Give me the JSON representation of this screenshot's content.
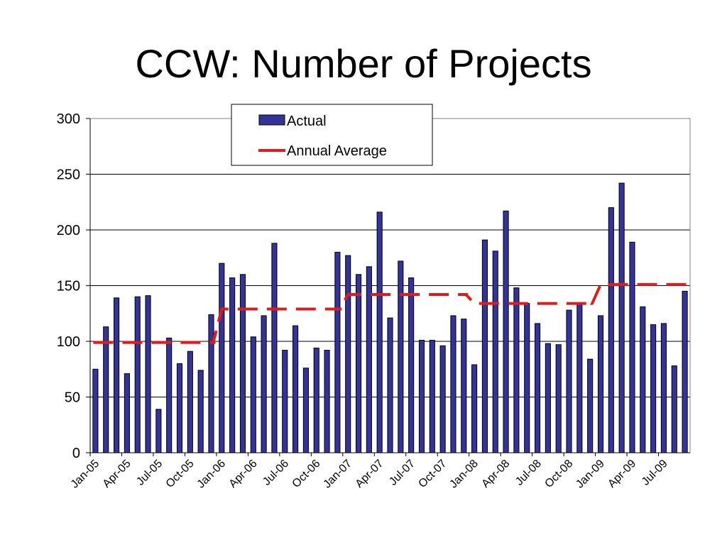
{
  "slide": {
    "title": "CCW: Number of Projects"
  },
  "chart_data": {
    "type": "bar",
    "title": "CCW: Number of Projects",
    "xlabel": "",
    "ylabel": "",
    "ylim": [
      0,
      300
    ],
    "yticks": [
      0,
      50,
      100,
      150,
      200,
      250,
      300
    ],
    "grid": true,
    "legend_position": "top-center",
    "x_tick_labels": [
      "Jan-05",
      "Apr-05",
      "Jul-05",
      "Oct-05",
      "Jan-06",
      "Apr-06",
      "Jul-06",
      "Oct-06",
      "Jan-07",
      "Apr-07",
      "Jul-07",
      "Oct-07",
      "Jan-08",
      "Apr-08",
      "Jul-08",
      "Oct-08",
      "Jan-09",
      "Apr-09",
      "Jul-09"
    ],
    "categories": [
      "Jan-05",
      "Feb-05",
      "Mar-05",
      "Apr-05",
      "May-05",
      "Jun-05",
      "Jul-05",
      "Aug-05",
      "Sep-05",
      "Oct-05",
      "Nov-05",
      "Dec-05",
      "Jan-06",
      "Feb-06",
      "Mar-06",
      "Apr-06",
      "May-06",
      "Jun-06",
      "Jul-06",
      "Aug-06",
      "Sep-06",
      "Oct-06",
      "Nov-06",
      "Dec-06",
      "Jan-07",
      "Feb-07",
      "Mar-07",
      "Apr-07",
      "May-07",
      "Jun-07",
      "Jul-07",
      "Aug-07",
      "Sep-07",
      "Oct-07",
      "Nov-07",
      "Dec-07",
      "Jan-08",
      "Feb-08",
      "Mar-08",
      "Apr-08",
      "May-08",
      "Jun-08",
      "Jul-08",
      "Aug-08",
      "Sep-08",
      "Oct-08",
      "Nov-08",
      "Dec-08",
      "Jan-09",
      "Feb-09",
      "Mar-09",
      "Apr-09",
      "May-09",
      "Jun-09",
      "Jul-09",
      "Aug-09",
      "Sep-09"
    ],
    "series": [
      {
        "name": "Actual",
        "kind": "bar",
        "color": "#333399",
        "values": [
          75,
          113,
          139,
          71,
          140,
          141,
          39,
          103,
          80,
          91,
          74,
          124,
          170,
          157,
          160,
          104,
          123,
          188,
          92,
          114,
          76,
          94,
          92,
          180,
          177,
          160,
          167,
          216,
          121,
          172,
          157,
          101,
          101,
          96,
          123,
          120,
          79,
          191,
          181,
          217,
          148,
          134,
          116,
          98,
          97,
          128,
          134,
          84,
          123,
          220,
          242,
          189,
          131,
          115,
          116,
          78,
          145
        ]
      },
      {
        "name": "Annual Average",
        "kind": "line",
        "style": "dashed",
        "color": "#e01b1b",
        "values": [
          99,
          99,
          99,
          99,
          99,
          99,
          99,
          99,
          99,
          99,
          99,
          99,
          129,
          129,
          129,
          129,
          129,
          129,
          129,
          129,
          129,
          129,
          129,
          129,
          142,
          142,
          142,
          142,
          142,
          142,
          142,
          142,
          142,
          142,
          142,
          142,
          134,
          134,
          134,
          134,
          134,
          134,
          134,
          134,
          134,
          134,
          134,
          134,
          151,
          151,
          151,
          151,
          151,
          151,
          151,
          151,
          151
        ]
      }
    ]
  }
}
